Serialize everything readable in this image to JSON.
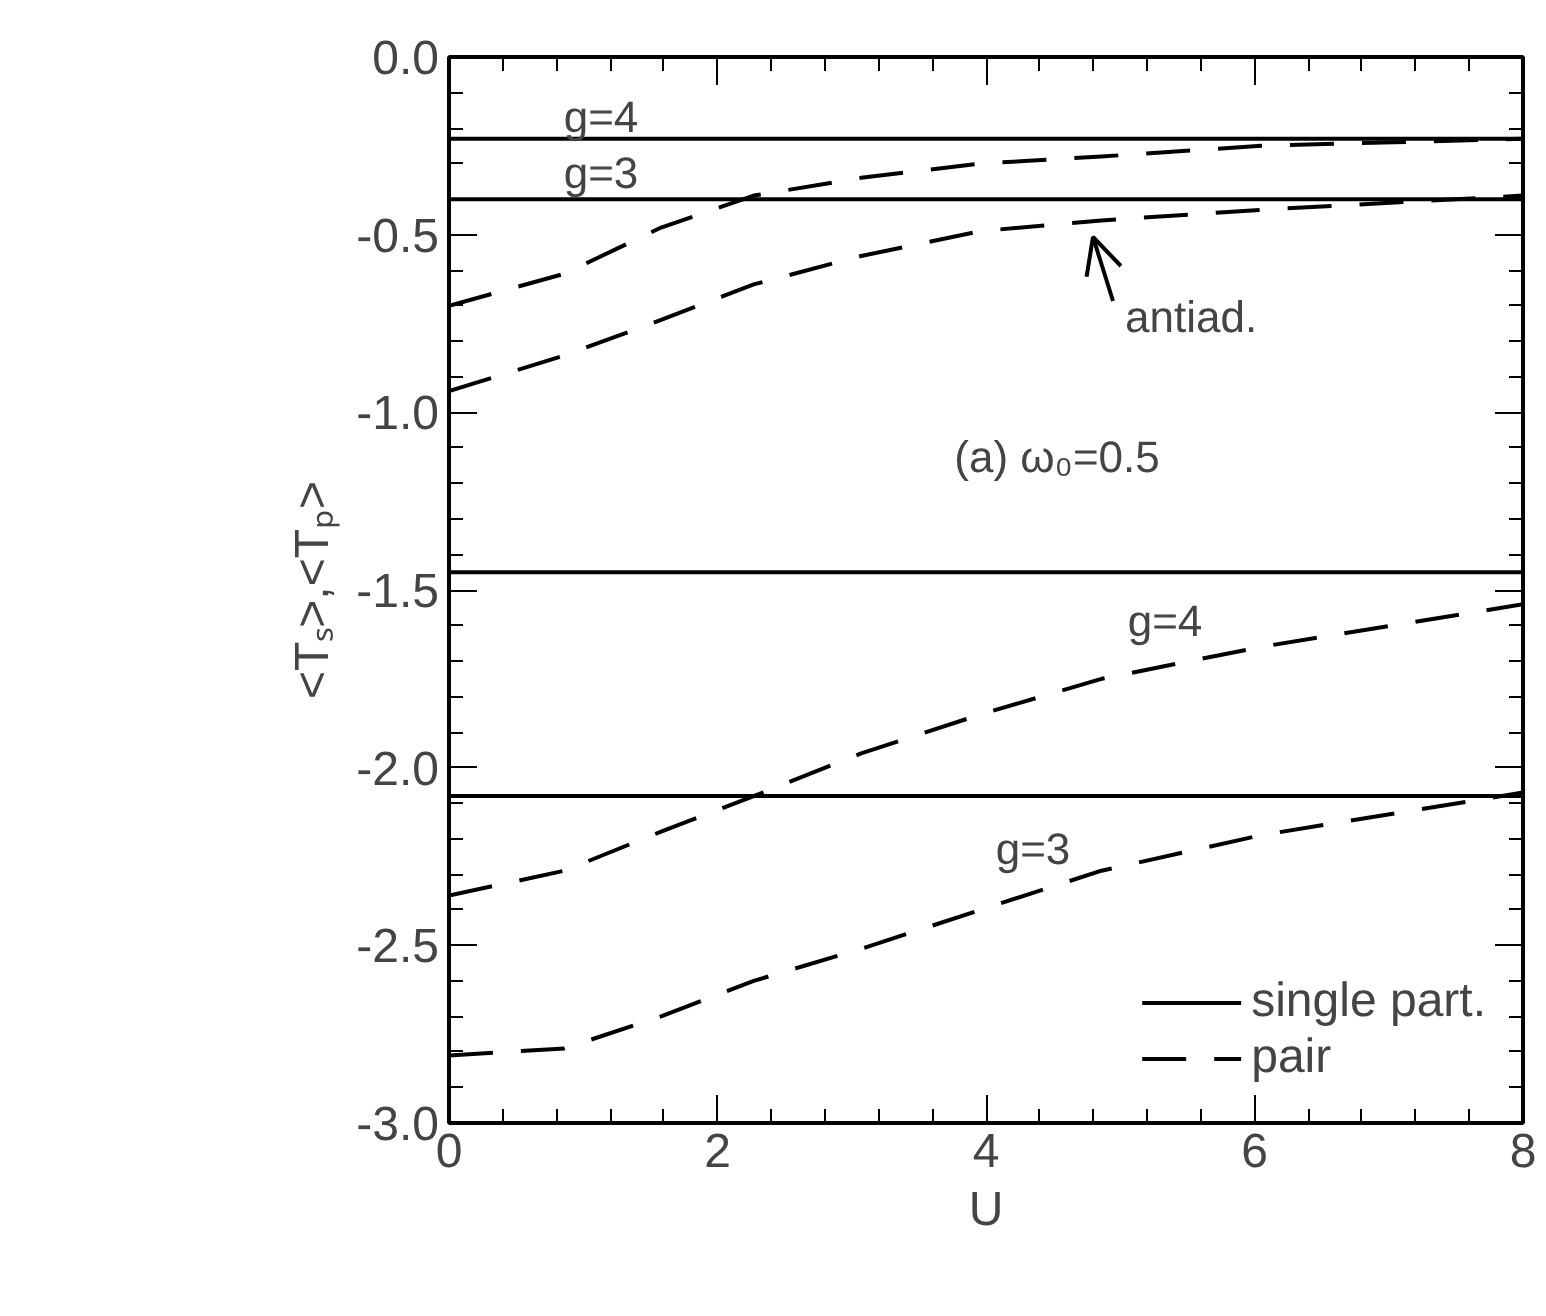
{
  "chart_data": {
    "type": "line",
    "xlabel": "U",
    "ylabel": "<Tₛ>,<Tₚ>",
    "xlim": [
      0,
      8
    ],
    "ylim": [
      -3.0,
      0.0
    ],
    "xticks": [
      0,
      2,
      4,
      6,
      8
    ],
    "yticks": [
      {
        "value": 0.0,
        "label": "0.0"
      },
      {
        "value": -0.5,
        "label": "-0.5"
      },
      {
        "value": -1.0,
        "label": "-1.0"
      },
      {
        "value": -1.5,
        "label": "-1.5"
      },
      {
        "value": -2.0,
        "label": "-2.0"
      },
      {
        "value": -2.5,
        "label": "-2.5"
      },
      {
        "value": -3.0,
        "label": "-3.0"
      }
    ],
    "x": [
      0,
      0.86,
      1.58,
      2.27,
      3.07,
      3.96,
      4.86,
      6.05,
      8
    ],
    "grid": false,
    "legend": "bottom right",
    "marker": "none",
    "series": [
      {
        "name": "single part.",
        "color": "#000000",
        "line_style": "solid",
        "values": [
          -0.23,
          -0.23,
          -0.23,
          -0.23,
          -0.23,
          -0.23,
          -0.23,
          -0.23,
          -0.23
        ]
      },
      {
        "color": "#000000",
        "line_style": "solid",
        "values": [
          -0.4,
          -0.4,
          -0.4,
          -0.4,
          -0.4,
          -0.4,
          -0.4,
          -0.4,
          -0.4
        ]
      },
      {
        "color": "#000000",
        "line_style": "solid",
        "values": [
          -1.45,
          -1.45,
          -1.45,
          -1.45,
          -1.45,
          -1.45,
          -1.45,
          -1.45,
          -1.45
        ]
      },
      {
        "color": "#000000",
        "line_style": "solid",
        "values": [
          -2.08,
          -2.08,
          -2.08,
          -2.08,
          -2.08,
          -2.08,
          -2.08,
          -2.08,
          -2.08
        ]
      },
      {
        "name": "pair",
        "color": "#000000",
        "line_style": "dashed",
        "values": [
          -0.7,
          -0.61,
          -0.48,
          -0.39,
          -0.34,
          -0.3,
          -0.28,
          -0.25,
          -0.23
        ]
      },
      {
        "color": "#000000",
        "line_style": "dashed",
        "values": [
          -0.94,
          -0.84,
          -0.74,
          -0.64,
          -0.56,
          -0.49,
          -0.46,
          -0.43,
          -0.39
        ]
      },
      {
        "color": "#000000",
        "line_style": "dashed",
        "values": [
          -2.36,
          -2.29,
          -2.18,
          -2.08,
          -1.96,
          -1.85,
          -1.75,
          -1.66,
          -1.54
        ]
      },
      {
        "color": "#000000",
        "line_style": "dashed",
        "values": [
          -2.81,
          -2.79,
          -2.7,
          -2.6,
          -2.51,
          -2.4,
          -2.29,
          -2.19,
          -2.07
        ]
      }
    ],
    "annotations": [
      "g=4",
      "g=3",
      "g=4",
      "g=3",
      "(a) ω₀=0.5",
      "antiad."
    ]
  }
}
